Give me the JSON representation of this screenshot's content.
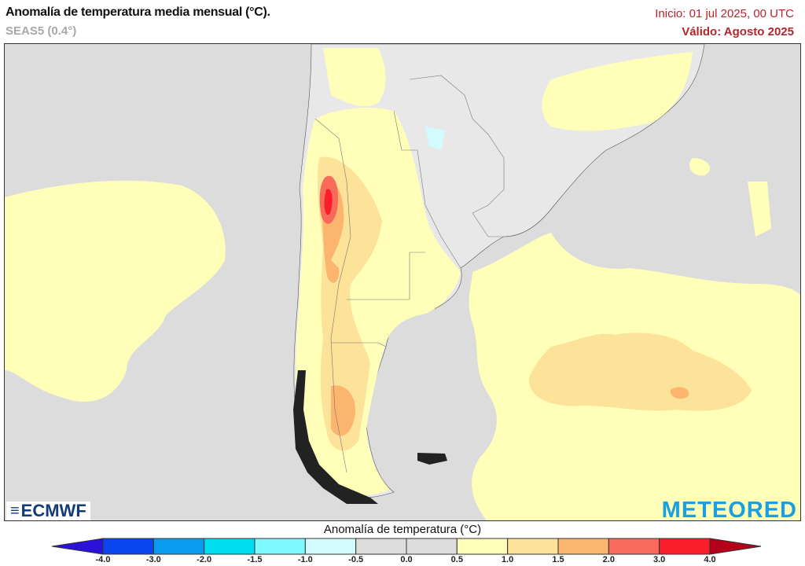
{
  "header": {
    "title": "Anomalía de temperatura media mensual (°C).",
    "model": "SEAS5 (0.4°)",
    "init": "Inicio: 01 jul 2025, 00 UTC",
    "valid": "Válido: Agosto 2025"
  },
  "logos": {
    "left": "ECMWF",
    "right": "METEORED"
  },
  "colorbar": {
    "title": "Anomalía de temperatura (°C)",
    "ticks": [
      "-4.0",
      "-3.0",
      "-2.0",
      "-1.5",
      "-1.0",
      "-0.5",
      "0.0",
      "0.5",
      "1.0",
      "1.5",
      "2.0",
      "3.0",
      "4.0"
    ],
    "colors": [
      "#0a46f0",
      "#0a9cf0",
      "#00dcf0",
      "#7dfaff",
      "#d2fcff",
      "#dcdcdc",
      "#dcdcdc",
      "#ffffb9",
      "#fde29a",
      "#fbb56e",
      "#f86b5a",
      "#f91f2a"
    ],
    "under_color": "#2a12d8",
    "over_color": "#b5001a"
  },
  "map_colors": {
    "ocean": "#dcdcdc",
    "land": "#e6e6e6",
    "anom_05_10": "#ffffb9",
    "anom_10_15": "#fde29a",
    "anom_15_20": "#fbb56e",
    "anom_20_30": "#f86b5a",
    "anom_30_40": "#f91f2a"
  }
}
